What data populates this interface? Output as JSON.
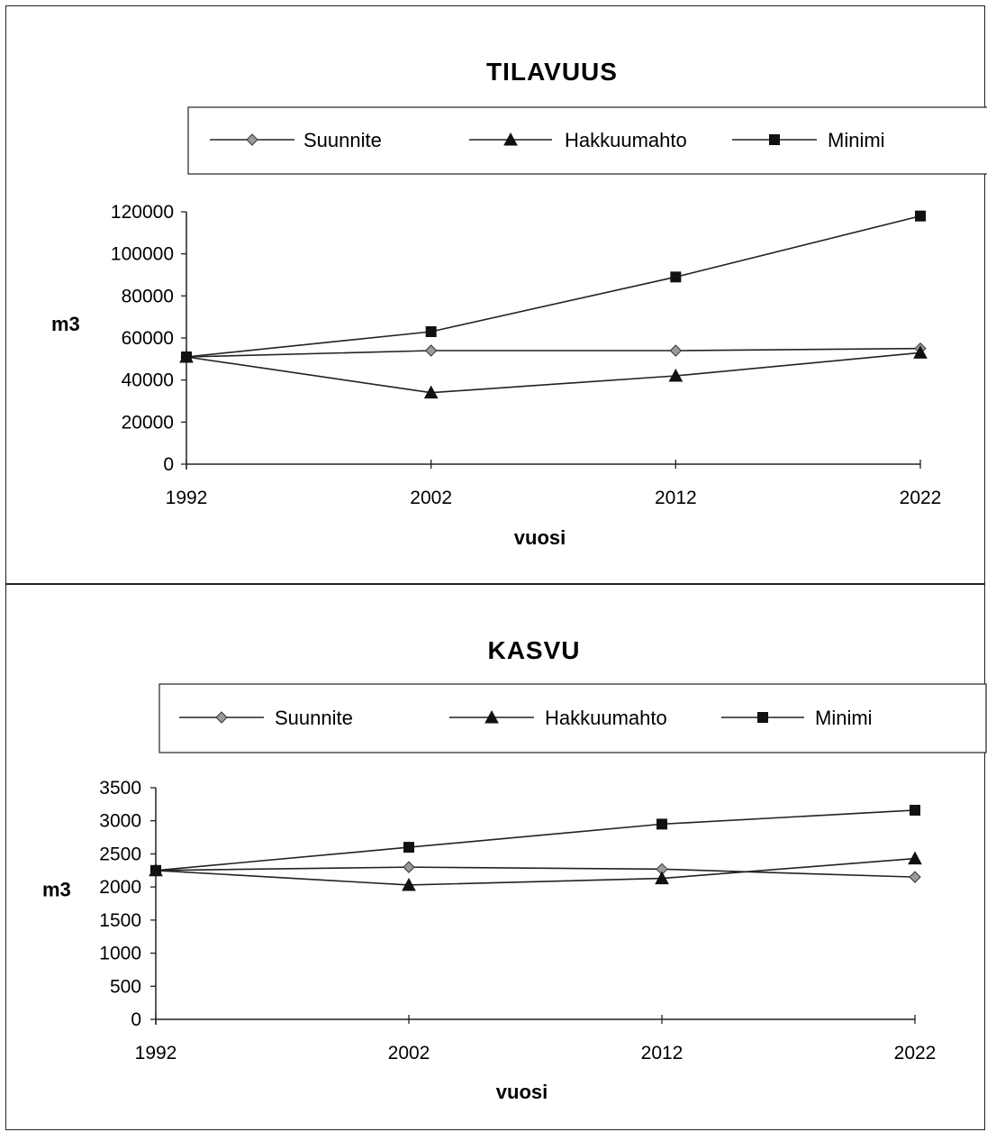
{
  "chart_data": [
    {
      "type": "line",
      "title": "TILAVUUS",
      "xlabel": "vuosi",
      "ylabel": "m3",
      "x": [
        "1992",
        "2002",
        "2012",
        "2022"
      ],
      "ylim": [
        0,
        120000
      ],
      "yticks": [
        "0",
        "20000",
        "40000",
        "60000",
        "80000",
        "100000",
        "120000"
      ],
      "legend": "top",
      "grid": false,
      "series": [
        {
          "name": "Suunnite",
          "marker": "diamond",
          "marker_color": "#9a9a9a",
          "values": [
            51000,
            54000,
            54000,
            55000
          ]
        },
        {
          "name": "Hakkuumahto",
          "marker": "triangle",
          "marker_color": "#111111",
          "values": [
            51000,
            34000,
            42000,
            53000
          ]
        },
        {
          "name": "Minimi",
          "marker": "square",
          "marker_color": "#111111",
          "values": [
            51000,
            63000,
            89000,
            118000
          ]
        }
      ]
    },
    {
      "type": "line",
      "title": "KASVU",
      "xlabel": "vuosi",
      "ylabel": "m3",
      "x": [
        "1992",
        "2002",
        "2012",
        "2022"
      ],
      "ylim": [
        0,
        3500
      ],
      "yticks": [
        "0",
        "500",
        "1000",
        "1500",
        "2000",
        "2500",
        "3000",
        "3500"
      ],
      "legend": "top",
      "grid": false,
      "series": [
        {
          "name": "Suunnite",
          "marker": "diamond",
          "marker_color": "#9a9a9a",
          "values": [
            2250,
            2300,
            2270,
            2150
          ]
        },
        {
          "name": "Hakkuumahto",
          "marker": "triangle",
          "marker_color": "#111111",
          "values": [
            2250,
            2030,
            2130,
            2430
          ]
        },
        {
          "name": "Minimi",
          "marker": "square",
          "marker_color": "#111111",
          "values": [
            2250,
            2600,
            2950,
            3160
          ]
        }
      ]
    }
  ]
}
